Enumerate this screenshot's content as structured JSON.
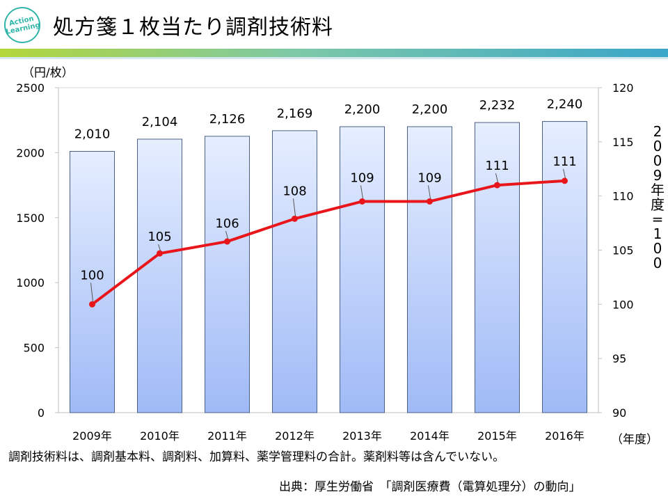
{
  "logo": {
    "line1": "Action",
    "line2": "Learning"
  },
  "slide": {
    "title": "処方箋１枚当たり調剤技術料",
    "caption": "調剤技術料は、調剤基本料、調剤料、加算料、薬学管理料の合計。薬剤料等は含んでいない。",
    "source": "出典：厚生労働省　「調剤医療費（電算処理分）の動向」"
  },
  "colors": {
    "bar_top": "#e6eeff",
    "bar_bottom": "#9fbaf6",
    "bar_stroke": "#4a5f85",
    "line": "#e8161b",
    "accent": "#2fb5a8"
  },
  "chart_data": {
    "type": "bar+line",
    "categories": [
      "2009年",
      "2010年",
      "2011年",
      "2012年",
      "2013年",
      "2014年",
      "2015年",
      "2016年"
    ],
    "series": [
      {
        "name": "処方箋１枚当たり調剤技術料",
        "type": "bar",
        "axis": "left",
        "values": [
          2010,
          2104,
          2126,
          2169,
          2200,
          2200,
          2232,
          2240
        ],
        "labels": [
          "2,010",
          "2,104",
          "2,126",
          "2,169",
          "2,200",
          "2,200",
          "2,232",
          "2,240"
        ]
      },
      {
        "name": "2009年度=100",
        "type": "line",
        "axis": "right",
        "values": [
          100,
          104.7,
          105.8,
          107.9,
          109.5,
          109.5,
          111.0,
          111.4
        ],
        "labels": [
          "100",
          "105",
          "106",
          "108",
          "109",
          "109",
          "111",
          "111"
        ]
      }
    ],
    "ylabel_left": "（円/枚）",
    "ylim_left": [
      0,
      2500
    ],
    "yticks_left": [
      0,
      500,
      1000,
      1500,
      2000,
      2500
    ],
    "ylabel_right": "2009年度=100",
    "ylim_right": [
      90,
      120
    ],
    "yticks_right": [
      90,
      95,
      100,
      105,
      110,
      115,
      120
    ],
    "xlabel": "（年度）",
    "grid": false,
    "legend": "none"
  }
}
